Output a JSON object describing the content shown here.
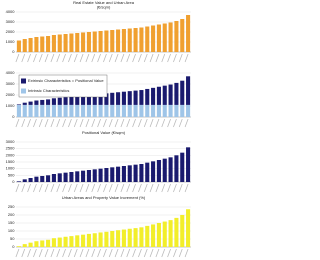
{
  "chart_data": [
    {
      "type": "bar",
      "title": "Real Estate Value and Urban Area",
      "subtitle": "(€/sqm)",
      "color": "#f0a030",
      "values": [
        1150,
        1300,
        1400,
        1500,
        1550,
        1600,
        1700,
        1750,
        1800,
        1850,
        1900,
        1950,
        2000,
        2050,
        2100,
        2150,
        2200,
        2250,
        2300,
        2350,
        2400,
        2450,
        2550,
        2650,
        2750,
        2850,
        2950,
        3100,
        3300,
        3700
      ],
      "ylim": [
        0,
        4000
      ],
      "yticks": [
        0,
        1000,
        2000,
        3000,
        4000
      ],
      "grid": true
    },
    {
      "type": "stacked_bar",
      "series": [
        {
          "name": "Intrinsic Characteristics",
          "color": "#9fc5e8",
          "values": [
            1100,
            1100,
            1100,
            1100,
            1100,
            1100,
            1100,
            1100,
            1100,
            1100,
            1100,
            1100,
            1100,
            1100,
            1100,
            1100,
            1100,
            1100,
            1100,
            1100,
            1100,
            1100,
            1100,
            1100,
            1100,
            1100,
            1100,
            1100,
            1100,
            1100
          ]
        },
        {
          "name": "Extrinsic Characteristics = Positional Value",
          "color": "#1a1a6e",
          "values": [
            50,
            200,
            300,
            400,
            450,
            500,
            600,
            650,
            700,
            750,
            800,
            850,
            900,
            950,
            1000,
            1050,
            1100,
            1150,
            1200,
            1250,
            1300,
            1350,
            1450,
            1550,
            1650,
            1750,
            1850,
            2000,
            2200,
            2600
          ]
        }
      ],
      "ylim": [
        0,
        4000
      ],
      "yticks": [
        0,
        1000,
        2000,
        3000,
        4000
      ],
      "grid": true,
      "legend": "upper left"
    },
    {
      "type": "bar",
      "title": "Positional Value (€/sqm)",
      "color": "#1a1a6e",
      "values": [
        50,
        200,
        300,
        400,
        450,
        500,
        600,
        650,
        700,
        750,
        800,
        850,
        900,
        950,
        1000,
        1050,
        1100,
        1150,
        1200,
        1250,
        1300,
        1350,
        1450,
        1550,
        1650,
        1750,
        1850,
        2000,
        2200,
        2600
      ],
      "ylim": [
        0,
        3000
      ],
      "yticks": [
        0,
        500,
        1000,
        1500,
        2000,
        2500,
        3000
      ],
      "grid": true
    },
    {
      "type": "bar",
      "title": "Urban Areas and Property Value Increment (%)",
      "color": "#f2ee2a",
      "values": [
        5,
        18,
        27,
        36,
        41,
        45,
        55,
        59,
        64,
        68,
        73,
        77,
        82,
        86,
        91,
        95,
        100,
        105,
        109,
        114,
        118,
        123,
        132,
        141,
        150,
        159,
        168,
        182,
        200,
        236
      ],
      "ylim": [
        0,
        250
      ],
      "yticks": [
        0,
        50,
        100,
        150,
        200,
        250
      ],
      "grid": true
    }
  ]
}
